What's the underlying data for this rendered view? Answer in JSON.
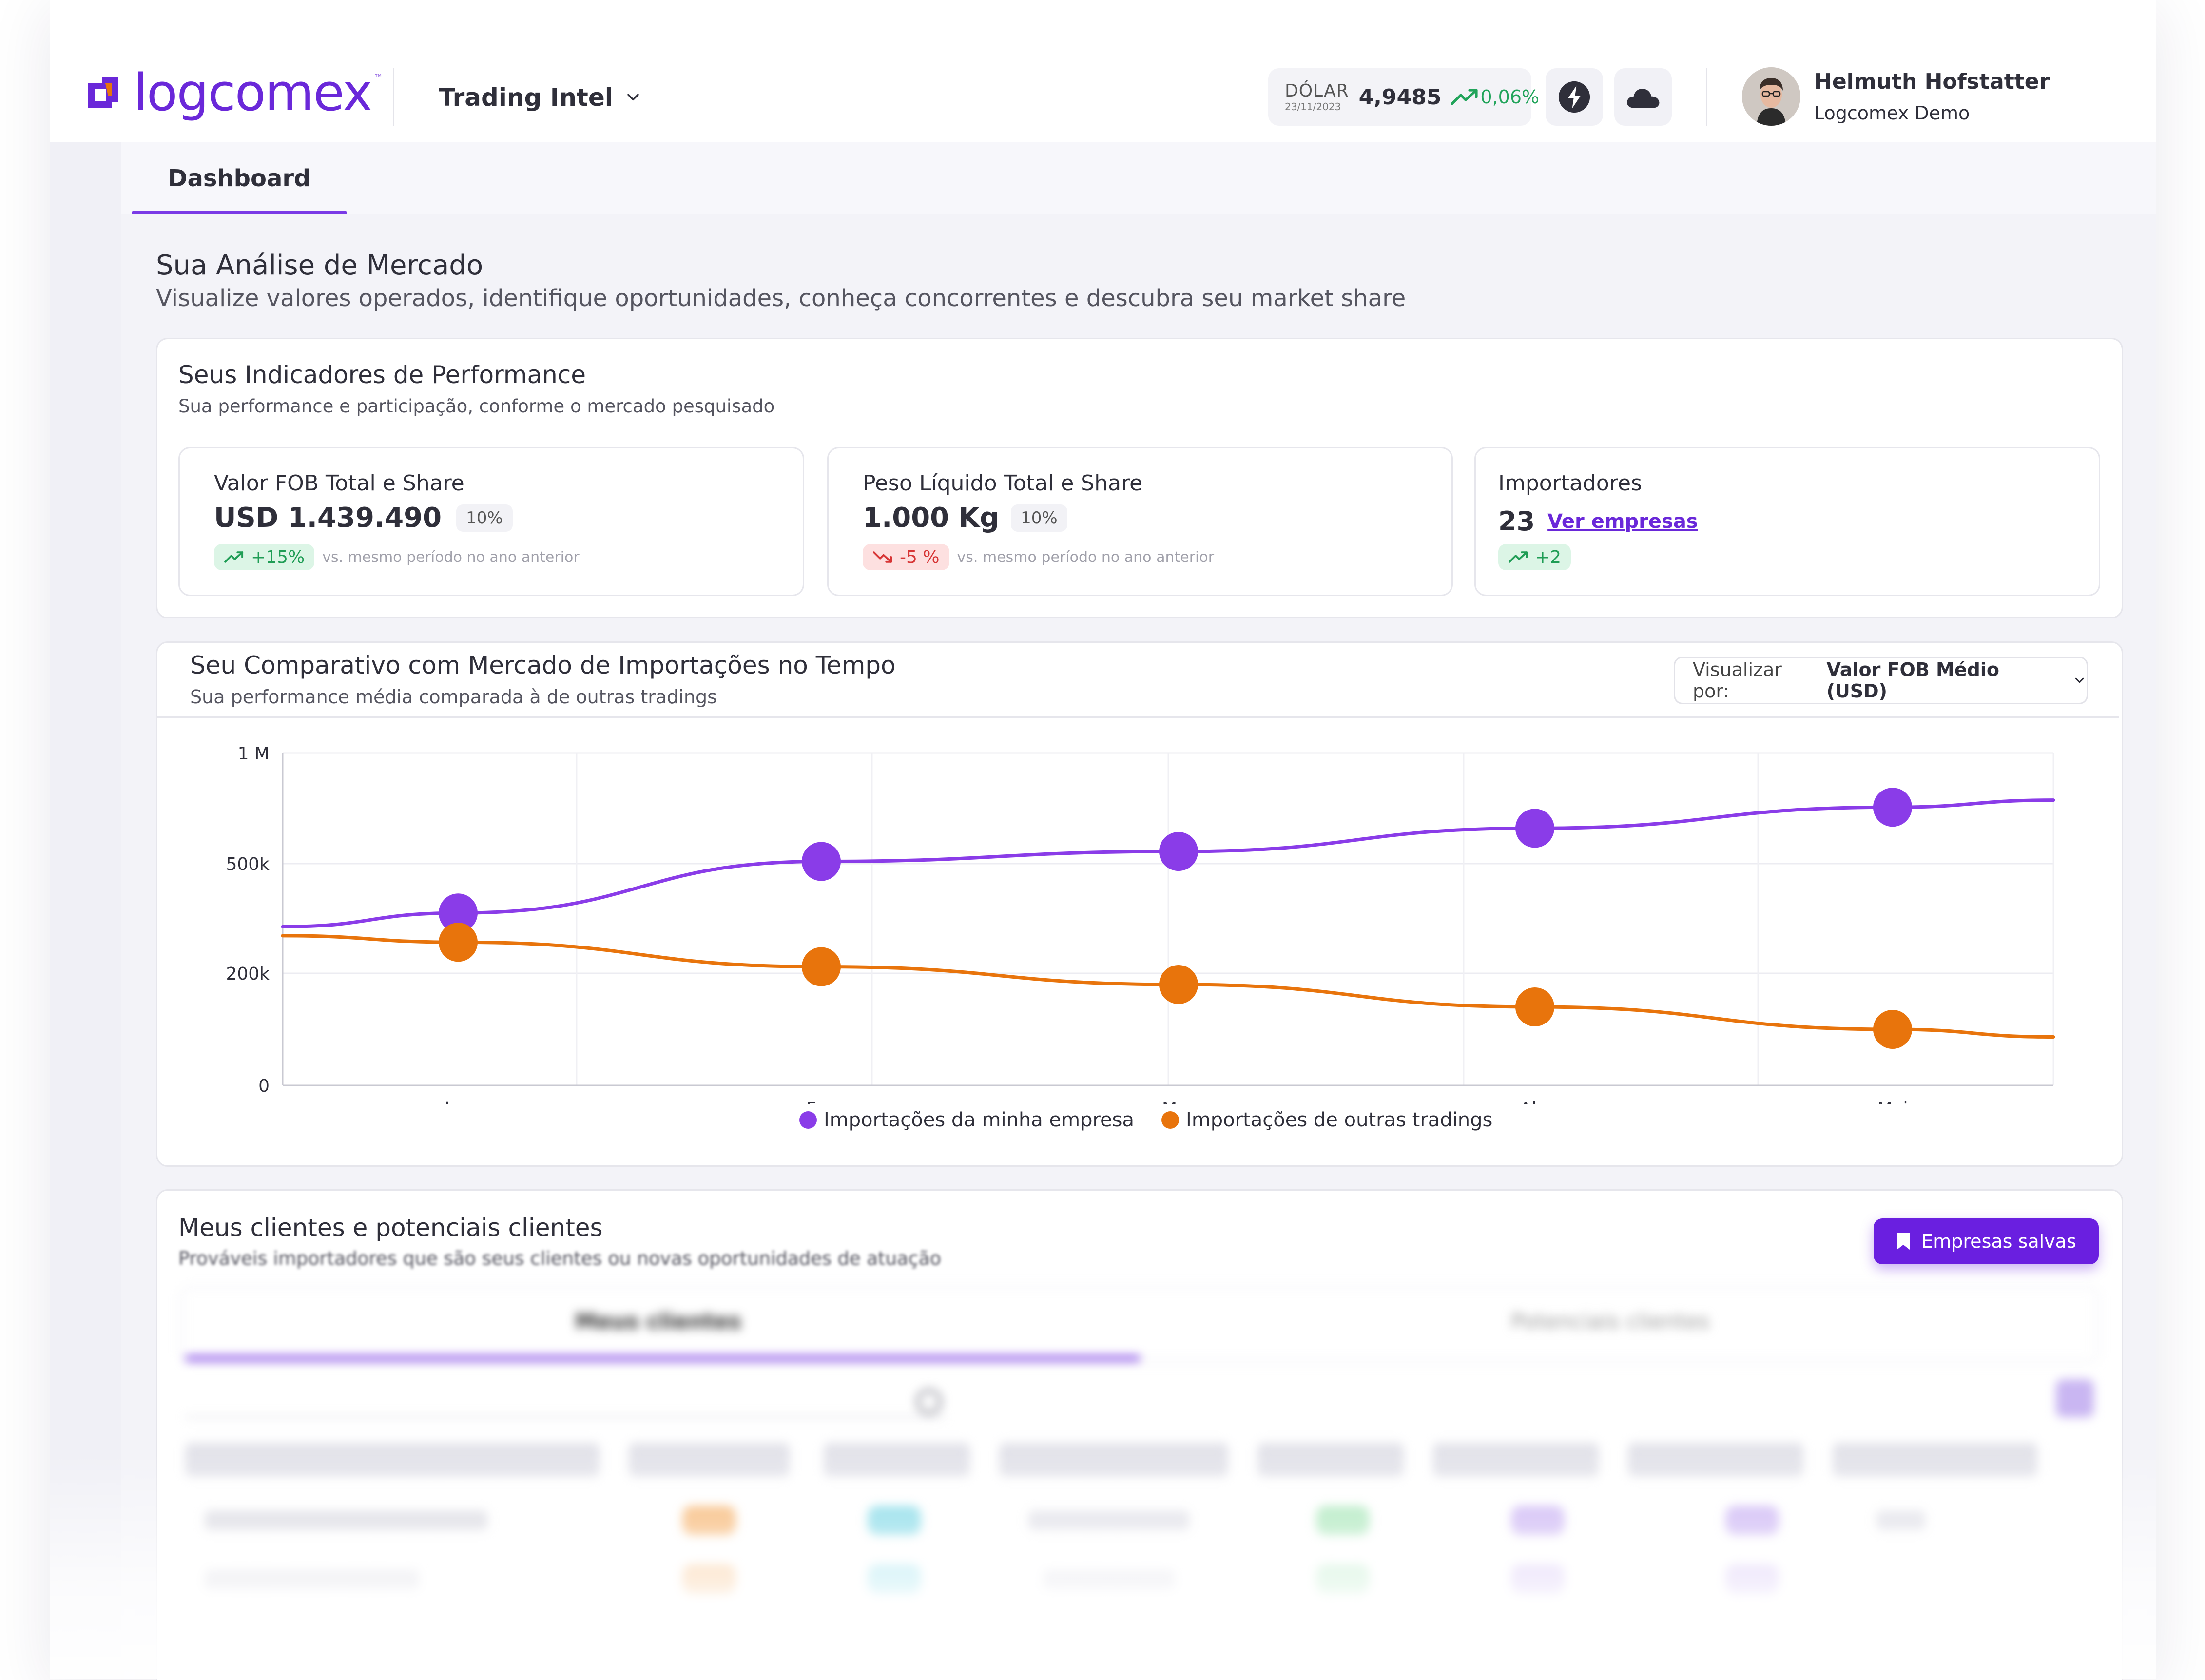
{
  "header": {
    "logo_text": "logcomex",
    "logo_tm": "™",
    "product": "Trading Intel",
    "dolar": {
      "label": "DÓLAR",
      "date": "23/11/2023",
      "value": "4,9485",
      "change": "0,06%"
    },
    "user": {
      "name": "Helmuth Hofstatter",
      "org": "Logcomex Demo"
    }
  },
  "tabs": {
    "dashboard": "Dashboard"
  },
  "page": {
    "title": "Sua Análise de Mercado",
    "subtitle": "Visualize valores operados, identifique oportunidades, conheça concorrentes e descubra seu market share"
  },
  "performance": {
    "title": "Seus Indicadores de Performance",
    "subtitle": "Sua performance e participação, conforme o mercado pesquisado",
    "kpis": [
      {
        "title": "Valor FOB Total e Share",
        "value": "USD 1.439.490",
        "share": "10%",
        "delta": "+15%",
        "note": "vs. mesmo período no ano anterior"
      },
      {
        "title": "Peso Líquido Total e Share",
        "value": "1.000 Kg",
        "share": "10%",
        "delta": "-5 %",
        "note": "vs. mesmo período no ano anterior"
      },
      {
        "title": "Importadores",
        "value": "23",
        "link": "Ver empresas",
        "delta": "+2"
      }
    ]
  },
  "comparison": {
    "title": "Seu Comparativo com Mercado de Importações no Tempo",
    "subtitle": "Sua performance média comparada à de outras tradings",
    "select_prefix": "Visualizar por:",
    "select_value": "Valor FOB Médio (USD)"
  },
  "chart_data": {
    "type": "line",
    "categories": [
      "Jan",
      "Fev",
      "Mar",
      "Abr",
      "Mai"
    ],
    "y_ticks": [
      "0",
      "200k",
      "500k",
      "1 M"
    ],
    "series": [
      {
        "name": "Importações da minha empresa",
        "color": "#8a3ce8",
        "values": [
          365000,
          510000,
          555000,
          660000,
          755000
        ]
      },
      {
        "name": "Importações de outras tradings",
        "color": "#e8740c",
        "values": [
          285000,
          218000,
          180000,
          140000,
          100000
        ]
      }
    ],
    "grid": true,
    "legend_position": "bottom"
  },
  "clients": {
    "title": "Meus clientes e potenciais clientes",
    "subtitle": "Prováveis importadores que são seus clientes ou novas oportunidades de atuação",
    "saved_button": "Empresas salvas",
    "tab_a": "Meus clientes",
    "tab_b": "Potenciais clientes"
  },
  "colors": {
    "brand": "#6a28d9",
    "accent": "#7a3ae6",
    "positive": "#1f9d55",
    "negative": "#d73535"
  }
}
